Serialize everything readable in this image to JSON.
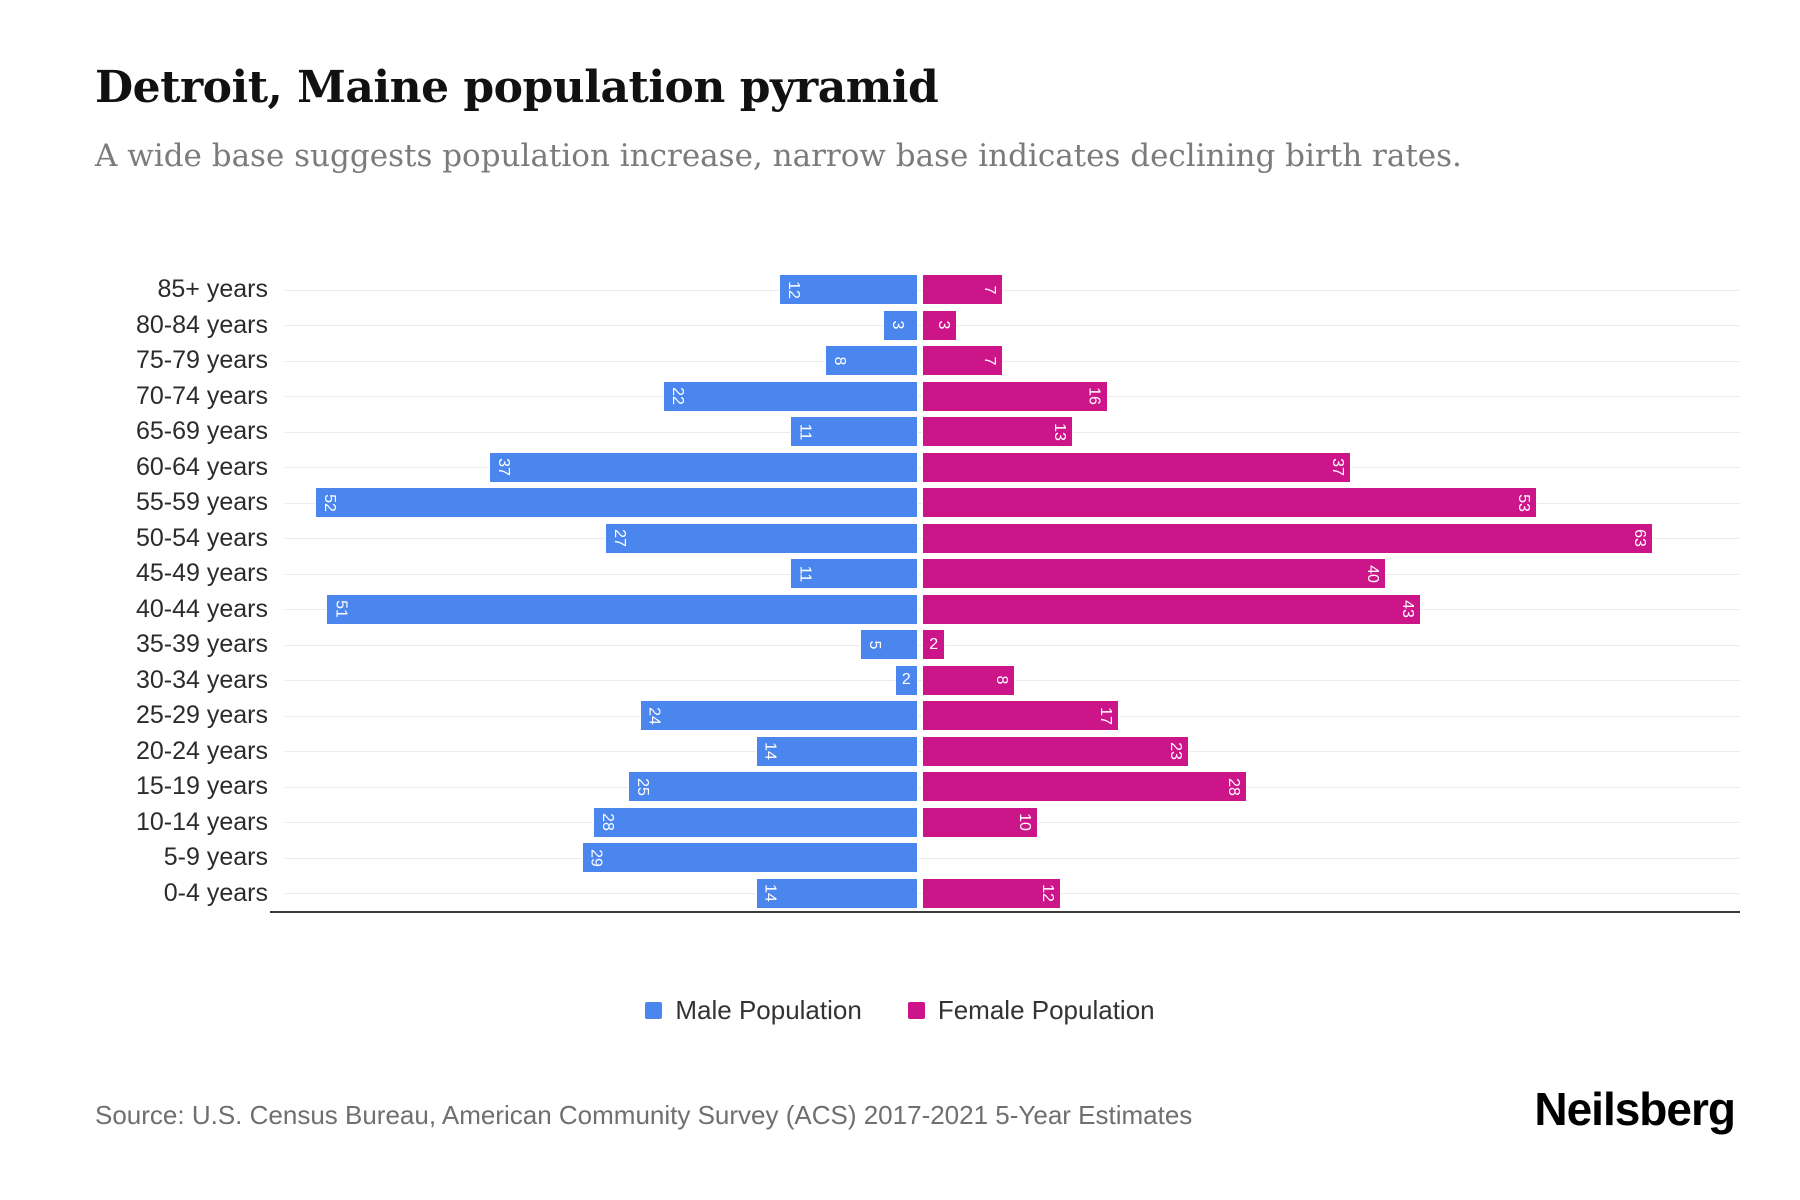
{
  "header": {
    "title": "Detroit, Maine population pyramid",
    "subtitle": "A wide base suggests population increase, narrow base indicates declining birth rates."
  },
  "legend": {
    "male_label": "Male Population",
    "female_label": "Female Population"
  },
  "footer": {
    "source": "Source: U.S. Census Bureau, American Community Survey (ACS) 2017-2021 5-Year Estimates",
    "brand": "Neilsberg"
  },
  "colors": {
    "male": "#4a86ee",
    "female": "#cc1589",
    "gridline": "#ebebeb",
    "axis": "#3a3a3a"
  },
  "chart_data": {
    "type": "bar",
    "orientation": "horizontal-pyramid",
    "title": "Detroit, Maine population pyramid",
    "categories": [
      "85+ years",
      "80-84 years",
      "75-79 years",
      "70-74 years",
      "65-69 years",
      "60-64 years",
      "55-59 years",
      "50-54 years",
      "45-49 years",
      "40-44 years",
      "35-39 years",
      "30-34 years",
      "25-29 years",
      "20-24 years",
      "15-19 years",
      "10-14 years",
      "5-9 years",
      "0-4 years"
    ],
    "series": [
      {
        "name": "Male Population",
        "values": [
          12,
          3,
          8,
          22,
          11,
          37,
          52,
          27,
          11,
          51,
          5,
          2,
          24,
          14,
          25,
          28,
          29,
          14
        ]
      },
      {
        "name": "Female Population",
        "values": [
          7,
          3,
          7,
          16,
          13,
          37,
          53,
          63,
          40,
          43,
          2,
          8,
          17,
          23,
          28,
          10,
          0,
          12
        ]
      }
    ],
    "value_labels": "inside-end, rotated 90deg",
    "grid": "horizontal category gridlines",
    "legend_position": "bottom-center",
    "axis_range_hint": {
      "male_max": 55,
      "female_max": 70
    }
  }
}
